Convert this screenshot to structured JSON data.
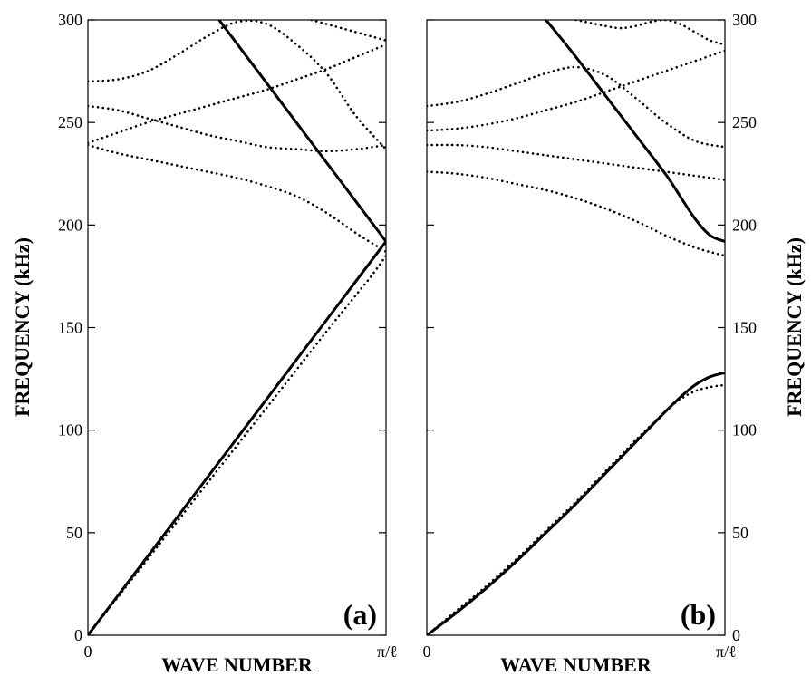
{
  "chart_data": [
    {
      "type": "line",
      "panel_label": "(a)",
      "xlabel": "WAVE NUMBER",
      "ylabel": "FREQUENCY (kHz)",
      "ylabel_side": "left",
      "xlim": [
        0,
        1
      ],
      "ylim": [
        0,
        300
      ],
      "x_ticks": [
        0,
        1
      ],
      "x_tick_labels": [
        "0",
        "π/ℓ"
      ],
      "y_ticks": [
        0,
        50,
        100,
        150,
        200,
        250,
        300
      ],
      "y_tick_labels": [
        "0",
        "50",
        "100",
        "150",
        "200",
        "250",
        "300"
      ],
      "series": [
        {
          "style": "solid",
          "x": [
            0,
            1
          ],
          "y": [
            0,
            192
          ]
        },
        {
          "style": "solid",
          "x": [
            0.44,
            1
          ],
          "y": [
            300,
            192
          ]
        },
        {
          "style": "dotted",
          "x": [
            0,
            0.1,
            0.2,
            0.3,
            0.4,
            0.5,
            0.6,
            0.7,
            0.8,
            0.9,
            0.95,
            1
          ],
          "y": [
            0,
            18.5,
            37,
            55.5,
            74,
            92.5,
            111,
            129.5,
            148,
            166,
            175,
            185
          ]
        },
        {
          "style": "dotted",
          "x": [
            0,
            0.1,
            0.2,
            0.3,
            0.4,
            0.5,
            0.6,
            0.7,
            0.8,
            0.9,
            1
          ],
          "y": [
            239,
            235,
            232,
            229,
            226,
            223,
            219,
            214,
            206,
            196,
            187
          ]
        },
        {
          "style": "dotted",
          "x": [
            0,
            0.1,
            0.2,
            0.3,
            0.4,
            0.5,
            0.6,
            0.7,
            0.8,
            0.9,
            1
          ],
          "y": [
            240,
            245,
            250,
            254,
            258,
            262,
            266,
            271,
            276,
            282,
            288
          ]
        },
        {
          "style": "dotted",
          "x": [
            0,
            0.1,
            0.2,
            0.3,
            0.4,
            0.5,
            0.6,
            0.7,
            0.8,
            0.9,
            1
          ],
          "y": [
            258,
            256,
            252,
            248,
            244,
            241,
            238,
            237,
            236,
            237,
            239
          ]
        },
        {
          "style": "dotted",
          "x": [
            0,
            0.1,
            0.2,
            0.3,
            0.4,
            0.5,
            0.6,
            0.7,
            0.8,
            0.9,
            1
          ],
          "y": [
            270,
            271,
            275,
            283,
            292,
            299,
            298,
            288,
            274,
            253,
            237
          ]
        },
        {
          "style": "dotted",
          "x": [
            0.75,
            0.8,
            0.85,
            0.9,
            0.95,
            1
          ],
          "y": [
            300,
            298,
            296,
            294,
            292,
            290
          ]
        }
      ]
    },
    {
      "type": "line",
      "panel_label": "(b)",
      "xlabel": "WAVE NUMBER",
      "ylabel": "FREQUENCY (kHz)",
      "ylabel_side": "right",
      "xlim": [
        0,
        1
      ],
      "ylim": [
        0,
        300
      ],
      "x_ticks": [
        0,
        1
      ],
      "x_tick_labels": [
        "0",
        "π/ℓ"
      ],
      "y_ticks": [
        0,
        50,
        100,
        150,
        200,
        250,
        300
      ],
      "y_tick_labels": [
        "0",
        "50",
        "100",
        "150",
        "200",
        "250",
        "300"
      ],
      "series": [
        {
          "style": "solid",
          "x": [
            0,
            0.1,
            0.2,
            0.3,
            0.4,
            0.5,
            0.6,
            0.7,
            0.8,
            0.85,
            0.9,
            0.95,
            1
          ],
          "y": [
            0,
            11,
            23,
            36,
            50,
            64,
            79,
            94,
            109,
            116,
            122,
            126,
            128
          ]
        },
        {
          "style": "dotted",
          "x": [
            0,
            0.1,
            0.2,
            0.3,
            0.4,
            0.5,
            0.6,
            0.7,
            0.8,
            0.85,
            0.9,
            0.95,
            1
          ],
          "y": [
            0,
            12,
            24,
            37,
            51,
            65,
            80,
            95,
            109,
            115,
            119,
            121,
            122
          ]
        },
        {
          "style": "solid",
          "x": [
            0.4,
            0.5,
            0.6,
            0.7,
            0.8,
            0.85,
            0.9,
            0.95,
            1
          ],
          "y": [
            300,
            282,
            263,
            244,
            225,
            214,
            203,
            195,
            192
          ]
        },
        {
          "style": "dotted",
          "x": [
            0,
            0.1,
            0.2,
            0.3,
            0.4,
            0.5,
            0.6,
            0.7,
            0.8,
            0.9,
            1
          ],
          "y": [
            226,
            225,
            223,
            220,
            217,
            213,
            208,
            202,
            195,
            189,
            185
          ]
        },
        {
          "style": "dotted",
          "x": [
            0,
            0.1,
            0.2,
            0.3,
            0.4,
            0.5,
            0.6,
            0.7,
            0.8,
            0.9,
            1
          ],
          "y": [
            239,
            239,
            238,
            236,
            234,
            232,
            230,
            228,
            226,
            224,
            222
          ]
        },
        {
          "style": "dotted",
          "x": [
            0,
            0.1,
            0.2,
            0.3,
            0.4,
            0.5,
            0.6,
            0.7,
            0.8,
            0.9,
            1
          ],
          "y": [
            246,
            247,
            249,
            252,
            256,
            260,
            265,
            270,
            275,
            280,
            285
          ]
        },
        {
          "style": "dotted",
          "x": [
            0,
            0.1,
            0.2,
            0.3,
            0.4,
            0.5,
            0.6,
            0.7,
            0.8,
            0.9,
            1
          ],
          "y": [
            258,
            260,
            264,
            269,
            274,
            277,
            273,
            262,
            250,
            241,
            238
          ]
        },
        {
          "style": "dotted",
          "x": [
            0.5,
            0.6,
            0.65,
            0.7,
            0.75,
            0.8,
            0.85,
            0.9,
            0.95,
            1
          ],
          "y": [
            300,
            297,
            296,
            297,
            299,
            300,
            298,
            294,
            290,
            288
          ]
        }
      ]
    }
  ]
}
